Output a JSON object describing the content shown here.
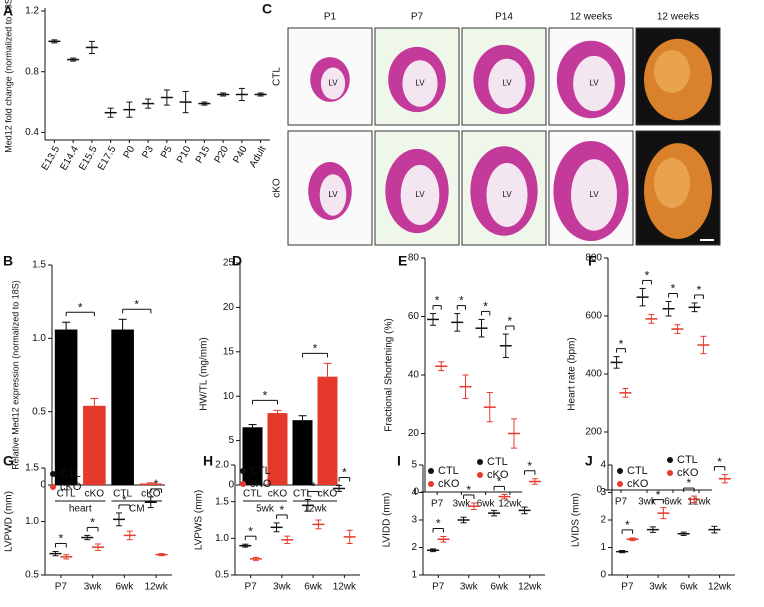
{
  "chart_data": [
    {
      "type": "dot",
      "panel": "A",
      "ylabel": "Med12 fold change (normalized to 18S)",
      "categories": [
        "E13.5",
        "E14.4",
        "E15.5",
        "E17.5",
        "P0",
        "P3",
        "P5",
        "P10",
        "P15",
        "P20",
        "P40",
        "Adult"
      ],
      "values": [
        1.0,
        0.88,
        0.96,
        0.53,
        0.55,
        0.59,
        0.63,
        0.6,
        0.59,
        0.65,
        0.65,
        0.65
      ],
      "errors": [
        0.01,
        0.01,
        0.04,
        0.03,
        0.05,
        0.03,
        0.05,
        0.07,
        0.01,
        0.01,
        0.04,
        0.01
      ],
      "color": "#111111",
      "ylim": [
        0.35,
        1.22
      ],
      "yticks": [
        0.4,
        0.8,
        1.2
      ]
    },
    {
      "type": "bar",
      "panel": "B",
      "ylabel": "Relative Med12 expression (normalized to 18S)",
      "categories": [
        "CTL",
        "cKO",
        "CTL",
        "cKO"
      ],
      "groups": [
        "heart",
        "CM"
      ],
      "values": [
        1.06,
        0.54,
        1.06,
        0.01
      ],
      "errors": [
        0.05,
        0.05,
        0.07,
        0.005
      ],
      "colors": [
        "#000000",
        "#e53a2b",
        "#000000",
        "#e53a2b"
      ],
      "annotations": [
        "*",
        "*"
      ],
      "ylim": [
        0,
        1.5
      ],
      "yticks": [
        0,
        0.5,
        {
          "value": 1,
          "label": "1.0"
        },
        1.5
      ]
    },
    {
      "type": "bar",
      "panel": "D",
      "ylabel": "HW/TL (mg/mm)",
      "categories": [
        "CTL",
        "cKO",
        "CTL",
        "cKO"
      ],
      "groups": [
        "5wk",
        "12wk"
      ],
      "values": [
        6.5,
        8.1,
        7.3,
        12.2
      ],
      "errors": [
        0.3,
        0.3,
        0.5,
        1.5
      ],
      "colors": [
        "#000000",
        "#e53a2b",
        "#000000",
        "#e53a2b"
      ],
      "annotations": [
        "*",
        "*"
      ],
      "ylim": [
        0,
        25
      ],
      "yticks": [
        0,
        5,
        10,
        15,
        20,
        25
      ]
    },
    {
      "type": "dot",
      "panel": "E",
      "ylabel": "Fractional Shortening (%)",
      "categories": [
        "P7",
        "3wk",
        "6wk",
        "12wk"
      ],
      "series": [
        {
          "name": "CTL",
          "color": "#111111",
          "values": [
            59,
            58,
            56,
            50
          ],
          "errors": [
            2,
            3,
            3,
            4
          ]
        },
        {
          "name": "cKO",
          "color": "#e53a2b",
          "values": [
            43,
            36,
            29,
            20
          ],
          "errors": [
            1.5,
            4,
            5,
            5
          ]
        }
      ],
      "annotations": [
        "*",
        "*",
        "*",
        "*"
      ],
      "legend": "lower right",
      "ylim": [
        0,
        80
      ],
      "yticks": [
        0,
        20,
        40,
        60,
        80
      ]
    },
    {
      "type": "dot",
      "panel": "F",
      "ylabel": "Heart rate (bpm)",
      "categories": [
        "P7",
        "3wk",
        "6wk",
        "12wk"
      ],
      "series": [
        {
          "name": "CTL",
          "color": "#111111",
          "values": [
            440,
            665,
            625,
            630
          ],
          "errors": [
            20,
            30,
            25,
            15
          ]
        },
        {
          "name": "cKO",
          "color": "#e53a2b",
          "values": [
            335,
            590,
            555,
            500
          ],
          "errors": [
            15,
            15,
            15,
            30
          ]
        }
      ],
      "annotations": [
        "*",
        "*",
        "*",
        "*"
      ],
      "legend": "lower right",
      "ylim": [
        0,
        800
      ],
      "yticks": [
        0,
        200,
        400,
        600,
        800
      ]
    },
    {
      "type": "dot",
      "panel": "G",
      "ylabel": "LVPWD (mm)",
      "categories": [
        "P7",
        "3wk",
        "6wk",
        "12wk"
      ],
      "series": [
        {
          "name": "CTL",
          "color": "#111111",
          "values": [
            0.7,
            0.85,
            1.02,
            1.18
          ],
          "errors": [
            0.02,
            0.02,
            0.06,
            0.05
          ]
        },
        {
          "name": "cKO",
          "color": "#e53a2b",
          "values": [
            0.67,
            0.76,
            0.87,
            0.69
          ],
          "errors": [
            0.02,
            0.03,
            0.04,
            0.01
          ]
        }
      ],
      "annotations": [
        "*",
        "*",
        "*",
        "*"
      ],
      "legend": "upper left",
      "ylim": [
        0.5,
        1.5
      ],
      "yticks": [
        0.5,
        {
          "value": 1,
          "label": "1.0"
        },
        1.5
      ]
    },
    {
      "type": "dot",
      "panel": "H",
      "ylabel": "LVPWS (mm)",
      "categories": [
        "P7",
        "3wk",
        "6wk",
        "12wk"
      ],
      "series": [
        {
          "name": "CTL",
          "color": "#111111",
          "values": [
            0.9,
            1.15,
            1.45,
            1.68
          ],
          "errors": [
            0.02,
            0.06,
            0.08,
            0.04
          ]
        },
        {
          "name": "cKO",
          "color": "#e53a2b",
          "values": [
            0.72,
            0.98,
            1.19,
            1.02
          ],
          "errors": [
            0.02,
            0.05,
            0.06,
            0.09
          ]
        }
      ],
      "annotations": [
        "*",
        "*",
        "*",
        "*"
      ],
      "legend": "upper left",
      "ylim": [
        0.5,
        2
      ],
      "yticks": [
        0.5,
        {
          "value": 1,
          "label": "1.0"
        },
        1.5,
        {
          "value": 2,
          "label": "2.0"
        }
      ]
    },
    {
      "type": "dot",
      "panel": "I",
      "ylabel": "LVIDD (mm)",
      "categories": [
        "P7",
        "3wk",
        "6wk",
        "12wk"
      ],
      "series": [
        {
          "name": "CTL",
          "color": "#111111",
          "values": [
            1.9,
            3.0,
            3.25,
            3.35
          ],
          "errors": [
            0.05,
            0.1,
            0.1,
            0.12
          ]
        },
        {
          "name": "cKO",
          "color": "#e53a2b",
          "values": [
            2.3,
            3.5,
            3.85,
            4.4
          ],
          "errors": [
            0.1,
            0.12,
            0.08,
            0.1
          ]
        }
      ],
      "annotations": [
        "*",
        "*",
        "*",
        "*"
      ],
      "legend": "upper left",
      "ylim": [
        1,
        5
      ],
      "yticks": [
        1,
        2,
        3,
        4,
        5
      ]
    },
    {
      "type": "dot",
      "panel": "J",
      "ylabel": "LVIDS (mm)",
      "categories": [
        "P7",
        "3wk",
        "6wk",
        "12wk"
      ],
      "series": [
        {
          "name": "CTL",
          "color": "#111111",
          "values": [
            0.85,
            1.65,
            1.5,
            1.65
          ],
          "errors": [
            0.04,
            0.1,
            0.06,
            0.12
          ]
        },
        {
          "name": "cKO",
          "color": "#e53a2b",
          "values": [
            1.3,
            2.25,
            2.75,
            3.5
          ],
          "errors": [
            0.05,
            0.2,
            0.12,
            0.15
          ]
        }
      ],
      "annotations": [
        "*",
        "*",
        "*",
        "*"
      ],
      "legend": "upper left",
      "ylim": [
        0,
        4
      ],
      "yticks": [
        0,
        1,
        2,
        3,
        4
      ]
    }
  ],
  "image_panel": {
    "panel": "C",
    "columns": [
      "P1",
      "P7",
      "P14",
      "12 weeks",
      "12 weeks"
    ],
    "rows": [
      "CTL",
      "cKO"
    ],
    "region_label": "LV"
  }
}
